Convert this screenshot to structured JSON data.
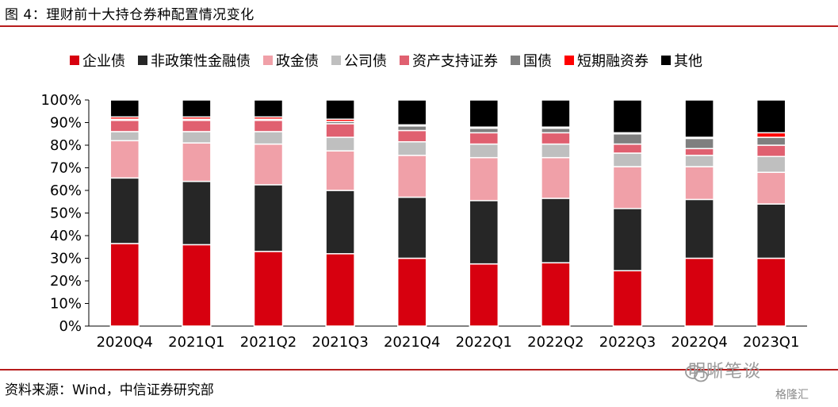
{
  "header": {
    "title": "图 4：理财前十大持仓券种配置情况变化"
  },
  "footer": {
    "source": "资料来源：Wind，中信证券研究部",
    "watermark": "明晰笔谈",
    "badge": "格隆汇"
  },
  "chart_data": {
    "type": "bar",
    "stacked": true,
    "title": "",
    "xlabel": "",
    "ylabel": "",
    "ylim": [
      0,
      100
    ],
    "y_ticks": [
      "0%",
      "10%",
      "20%",
      "30%",
      "40%",
      "50%",
      "60%",
      "70%",
      "80%",
      "90%",
      "100%"
    ],
    "grid": false,
    "legend_position": "top",
    "categories": [
      "2020Q4",
      "2021Q1",
      "2021Q2",
      "2021Q3",
      "2021Q4",
      "2022Q1",
      "2022Q2",
      "2022Q3",
      "2022Q4",
      "2023Q1"
    ],
    "series": [
      {
        "name": "企业债",
        "color": "#d7000f",
        "values": [
          36.5,
          36.0,
          33.0,
          32.0,
          30.0,
          27.5,
          28.0,
          24.5,
          30.0,
          30.0
        ]
      },
      {
        "name": "非政策性金融债",
        "color": "#262626",
        "values": [
          29.0,
          28.0,
          29.5,
          28.0,
          27.0,
          28.0,
          28.5,
          27.5,
          26.0,
          24.0
        ]
      },
      {
        "name": "政金债",
        "color": "#f0a0a8",
        "values": [
          16.5,
          17.0,
          18.0,
          17.5,
          18.5,
          19.0,
          18.0,
          18.5,
          14.5,
          14.0
        ]
      },
      {
        "name": "公司债",
        "color": "#bfbfbf",
        "values": [
          4.0,
          5.0,
          5.5,
          6.0,
          6.0,
          6.0,
          6.0,
          6.0,
          5.0,
          7.0
        ]
      },
      {
        "name": "资产支持证券",
        "color": "#e06070",
        "values": [
          5.0,
          5.0,
          5.0,
          6.0,
          5.0,
          5.0,
          5.0,
          4.0,
          3.0,
          5.0
        ]
      },
      {
        "name": "国债",
        "color": "#7f7f7f",
        "values": [
          0.5,
          0.5,
          0.5,
          1.0,
          2.0,
          2.0,
          2.0,
          4.5,
          4.5,
          3.5
        ]
      },
      {
        "name": "短期融资券",
        "color": "#ff0000",
        "values": [
          1.0,
          1.0,
          1.0,
          1.0,
          0.5,
          0.5,
          0.5,
          0.5,
          0.5,
          2.0
        ]
      },
      {
        "name": "其他",
        "color": "#000000",
        "values": [
          7.5,
          7.5,
          7.5,
          8.5,
          11.0,
          12.0,
          12.0,
          14.5,
          16.5,
          14.5
        ]
      }
    ]
  }
}
